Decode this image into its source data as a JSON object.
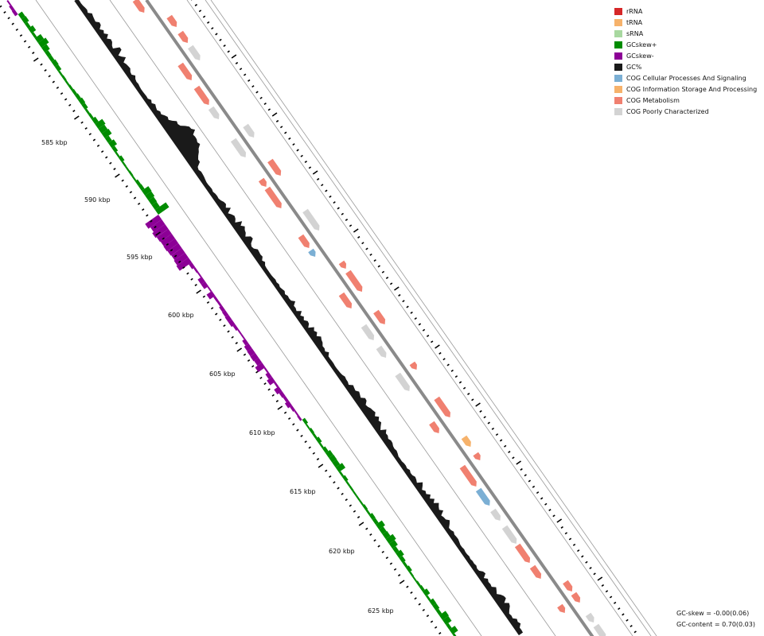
{
  "legend": [
    {
      "label": "rRNA",
      "color": "#d62728"
    },
    {
      "label": "tRNA",
      "color": "#f6b26b"
    },
    {
      "label": "sRNA",
      "color": "#a8d8a0"
    },
    {
      "label": "GCskew+",
      "color": "#008c00"
    },
    {
      "label": "GCskew-",
      "color": "#8c0096"
    },
    {
      "label": "GC%",
      "color": "#1a1a1a"
    },
    {
      "label": "COG Cellular Processes And Signaling",
      "color": "#7bafd4"
    },
    {
      "label": "COG Information Storage And Processing",
      "color": "#f6b26b"
    },
    {
      "label": "COG Metabolism",
      "color": "#f08070"
    },
    {
      "label": "COG Poorly Characterized",
      "color": "#d3d3d3"
    }
  ],
  "ticks": {
    "labels": [
      "585 kbp",
      "590 kbp",
      "595 kbp",
      "600 kbp",
      "605 kbp",
      "610 kbp",
      "615 kbp",
      "620 kbp",
      "625 kbp"
    ]
  },
  "stats": {
    "gc_skew": "GC-skew = -0.00(0.06)",
    "gc_content": "GC-content = 0.70(0.03)"
  },
  "colors": {
    "backbone": "#8a8a8a",
    "track_line": "#999999",
    "gc": "#1a1a1a",
    "skew_pos": "#008c00",
    "skew_neg": "#8c0096"
  }
}
